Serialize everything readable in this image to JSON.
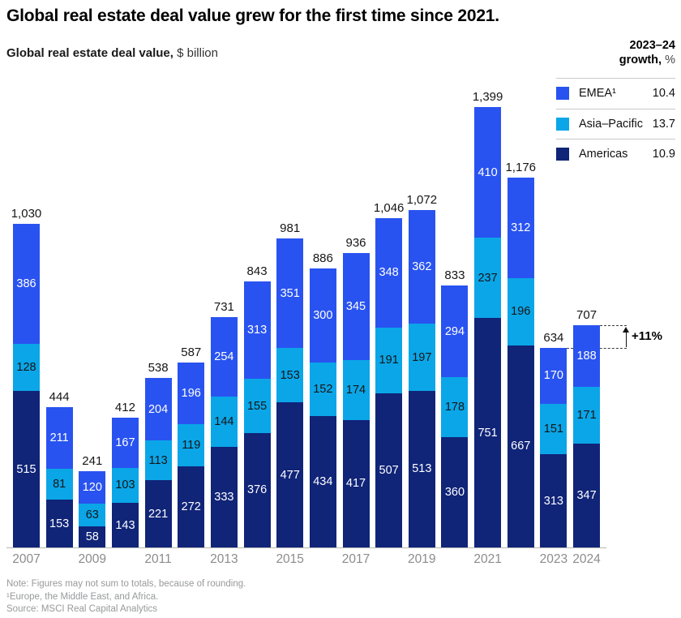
{
  "title": "Global real estate deal value grew for the first time since 2021.",
  "subtitle": {
    "bold": "Global real estate deal value,",
    "regular": " $ billion"
  },
  "legend": {
    "header_line1": "2023–24",
    "header_line2_bold": "growth,",
    "header_line2_regular": " %",
    "items": [
      {
        "label": "EMEA¹",
        "growth": "10.4",
        "color": "#2953f0"
      },
      {
        "label": "Asia–Pacific",
        "growth": "13.7",
        "color": "#0aa6e8"
      },
      {
        "label": "Americas",
        "growth": "10.9",
        "color": "#102478"
      }
    ]
  },
  "chart_data": {
    "type": "bar",
    "stacked": true,
    "title": "Global real estate deal value, $ billion",
    "unit": "$ billion",
    "ylim": [
      0,
      1450
    ],
    "grid": false,
    "legend_position": "top-right",
    "categories": [
      "2007",
      "2008",
      "2009",
      "2010",
      "2011",
      "2012",
      "2013",
      "2014",
      "2015",
      "2016",
      "2017",
      "2018",
      "2019",
      "2020",
      "2021",
      "2022",
      "2023",
      "2024"
    ],
    "series": [
      {
        "name": "Americas",
        "color": "#102478",
        "label_color": "#ffffff",
        "values": [
          515,
          153,
          58,
          143,
          221,
          272,
          333,
          376,
          477,
          434,
          417,
          507,
          513,
          360,
          751,
          667,
          313,
          347
        ]
      },
      {
        "name": "Asia-Pacific",
        "color": "#0aa6e8",
        "label_color": "#161616",
        "values": [
          128,
          81,
          63,
          103,
          113,
          119,
          144,
          155,
          153,
          152,
          174,
          191,
          197,
          178,
          237,
          196,
          151,
          171
        ]
      },
      {
        "name": "EMEA",
        "color": "#2953f0",
        "label_color": "#ffffff",
        "values": [
          386,
          211,
          120,
          167,
          204,
          196,
          254,
          313,
          351,
          300,
          345,
          348,
          362,
          294,
          410,
          312,
          170,
          188
        ]
      }
    ],
    "totals": [
      "1,030",
      "444",
      "241",
      "412",
      "538",
      "587",
      "731",
      "843",
      "981",
      "886",
      "936",
      "1,046",
      "1,072",
      "833",
      "1,399",
      "1,176",
      "634",
      "707"
    ],
    "x_tick_labels": [
      "2007",
      "2009",
      "2011",
      "2013",
      "2015",
      "2017",
      "2019",
      "2021",
      "2023",
      "2024"
    ],
    "annotation": {
      "text": "+11%",
      "from_category": "2023",
      "to_category": "2024"
    }
  },
  "notes": [
    "Note: Figures may not sum to totals, because of rounding.",
    "¹Europe, the Middle East, and Africa.",
    "Source: MSCI Real Capital Analytics"
  ]
}
